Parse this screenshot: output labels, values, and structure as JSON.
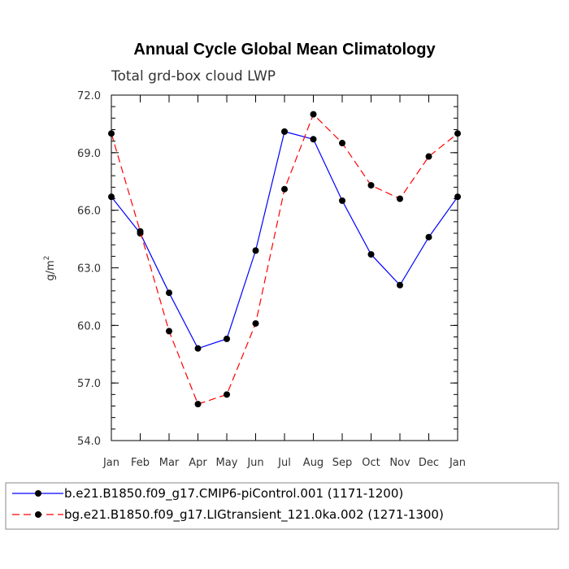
{
  "chart_data": {
    "type": "line",
    "title": "Annual Cycle Global Mean Climatology",
    "subtitle": "Total grd-box cloud LWP",
    "xlabel": "",
    "ylabel": "g/m",
    "ylabel_superscript": "2",
    "categories": [
      "Jan",
      "Feb",
      "Mar",
      "Apr",
      "May",
      "Jun",
      "Jul",
      "Aug",
      "Sep",
      "Oct",
      "Nov",
      "Dec",
      "Jan"
    ],
    "ylim": [
      54.0,
      72.0
    ],
    "yticks": [
      "54.0",
      "57.0",
      "60.0",
      "63.0",
      "66.0",
      "69.0",
      "72.0"
    ],
    "grid": false,
    "legend_position": "bottom",
    "series": [
      {
        "name": "b.e21.B1850.f09_g17.CMIP6-piControl.001 (1171-1200)",
        "color": "#0000ff",
        "dashed": false,
        "values": [
          66.7,
          64.8,
          61.7,
          58.8,
          59.3,
          63.9,
          70.1,
          69.7,
          66.5,
          63.7,
          62.1,
          64.6,
          66.7
        ]
      },
      {
        "name": "bg.e21.B1850.f09_g17.LIGtransient_121.0ka.002 (1271-1300)",
        "color": "#ff0000",
        "dashed": true,
        "values": [
          70.0,
          64.9,
          59.7,
          55.9,
          56.4,
          60.1,
          67.1,
          71.0,
          69.5,
          67.3,
          66.6,
          68.8,
          70.0
        ]
      }
    ]
  }
}
